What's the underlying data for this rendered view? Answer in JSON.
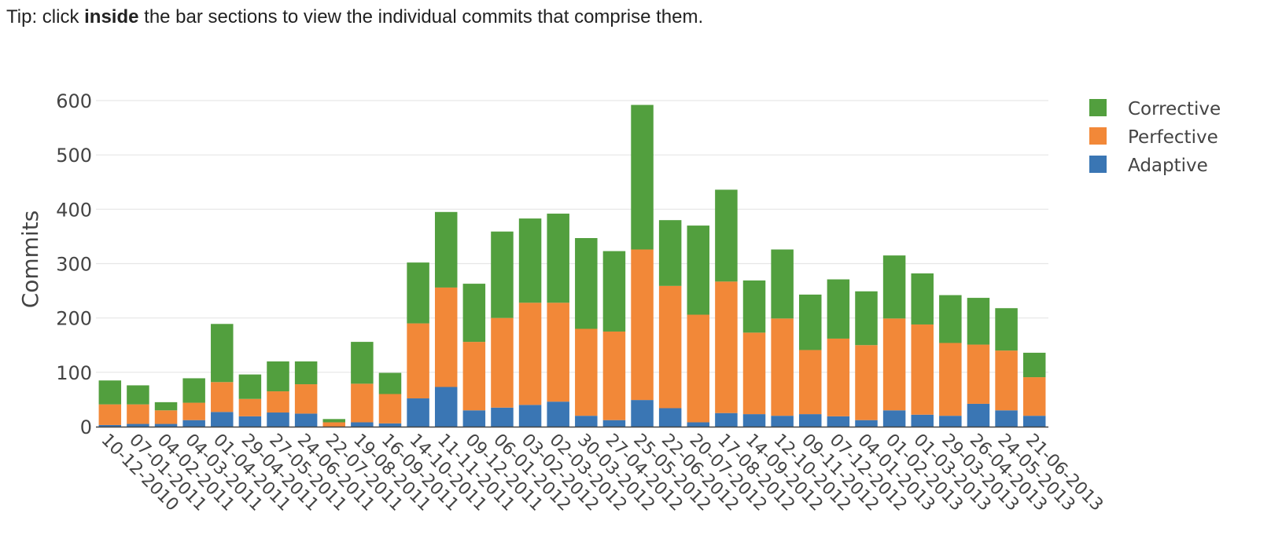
{
  "tip": {
    "prefix": "Tip: click ",
    "bold": "inside",
    "suffix": " the bar sections to view the individual commits that comprise them."
  },
  "chart_data": {
    "type": "bar",
    "stacked": true,
    "title": "",
    "xlabel": "",
    "ylabel": "Commits",
    "ylim": [
      0,
      600
    ],
    "yticks": [
      0,
      100,
      200,
      300,
      400,
      500,
      600
    ],
    "grid": true,
    "legend_position": "right",
    "categories": [
      "10-12-2010",
      "07-01-2011",
      "04-02-2011",
      "04-03-2011",
      "01-04-2011",
      "29-04-2011",
      "27-05-2011",
      "24-06-2011",
      "22-07-2011",
      "19-08-2011",
      "16-09-2011",
      "14-10-2011",
      "11-11-2011",
      "09-12-2011",
      "06-01-2012",
      "03-02-2012",
      "02-03-2012",
      "30-03-2012",
      "27-04-2012",
      "25-05-2012",
      "22-06-2012",
      "20-07-2012",
      "17-08-2012",
      "14-09-2012",
      "12-10-2012",
      "09-11-2012",
      "07-12-2012",
      "04-01-2013",
      "01-02-2013",
      "01-03-2013",
      "29-03-2013",
      "26-04-2013",
      "24-05-2013",
      "21-06-2013"
    ],
    "series": [
      {
        "name": "Adaptive",
        "color": "#3a76b4",
        "values": [
          3,
          5,
          5,
          12,
          27,
          19,
          26,
          24,
          0,
          8,
          6,
          52,
          73,
          30,
          35,
          40,
          46,
          20,
          12,
          49,
          34,
          8,
          25,
          23,
          20,
          23,
          19,
          12,
          30,
          22,
          20,
          42,
          30,
          20
        ]
      },
      {
        "name": "Perfective",
        "color": "#f28838",
        "values": [
          38,
          36,
          25,
          32,
          55,
          32,
          39,
          54,
          8,
          71,
          54,
          138,
          183,
          126,
          165,
          188,
          182,
          160,
          163,
          277,
          225,
          198,
          242,
          150,
          179,
          118,
          143,
          138,
          169,
          166,
          134,
          109,
          110,
          71
        ]
      },
      {
        "name": "Corrective",
        "color": "#529f3e",
        "values": [
          44,
          35,
          15,
          45,
          107,
          45,
          55,
          42,
          6,
          77,
          39,
          112,
          139,
          107,
          159,
          155,
          164,
          167,
          148,
          266,
          121,
          164,
          169,
          96,
          127,
          102,
          109,
          99,
          116,
          94,
          88,
          86,
          78,
          45
        ]
      }
    ],
    "legend": [
      {
        "name": "Corrective",
        "color": "#529f3e"
      },
      {
        "name": "Perfective",
        "color": "#f28838"
      },
      {
        "name": "Adaptive",
        "color": "#3a76b4"
      }
    ]
  }
}
